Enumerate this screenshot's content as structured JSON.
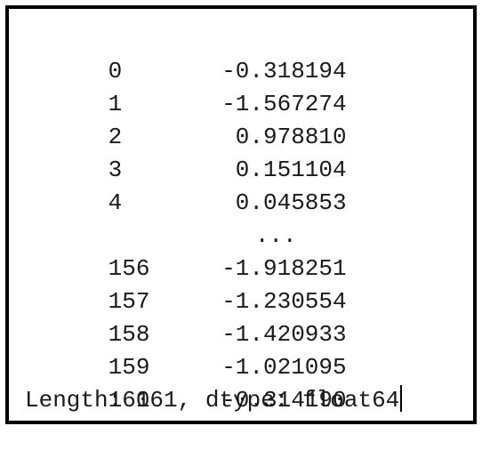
{
  "series": {
    "rows_head": [
      {
        "index": "0",
        "value": "-0.318194"
      },
      {
        "index": "1",
        "value": "-1.567274"
      },
      {
        "index": "2",
        "value": "0.978810"
      },
      {
        "index": "3",
        "value": "0.151104"
      },
      {
        "index": "4",
        "value": "0.045853"
      }
    ],
    "ellipsis": "...",
    "rows_tail": [
      {
        "index": "156",
        "value": "-1.918251"
      },
      {
        "index": "157",
        "value": "-1.230554"
      },
      {
        "index": "158",
        "value": "-1.420933"
      },
      {
        "index": "159",
        "value": "-1.021095"
      },
      {
        "index": "160",
        "value": "-0.314190"
      }
    ],
    "footer": "Length: 161, dtype: float64"
  }
}
